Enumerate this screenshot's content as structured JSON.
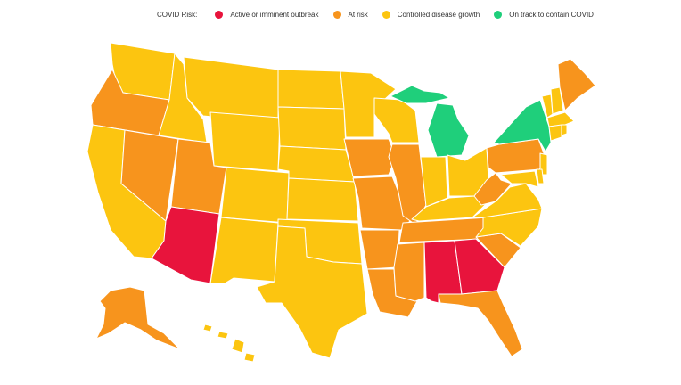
{
  "legend": {
    "title": "COVID Risk:",
    "items": [
      {
        "label": "Active or imminent outbreak",
        "color": "#e8143c"
      },
      {
        "label": "At risk",
        "color": "#f7941d"
      },
      {
        "label": "Controlled disease growth",
        "color": "#fcc510"
      },
      {
        "label": "On track to contain COVID",
        "color": "#1fcf7b"
      }
    ]
  },
  "map": {
    "risk_by_state": {
      "Active or imminent outbreak": [
        "Arizona",
        "Alabama",
        "Georgia"
      ],
      "At risk": [
        "Oregon",
        "Nevada",
        "Utah",
        "Iowa",
        "Illinois",
        "Missouri",
        "Arkansas",
        "Louisiana",
        "Mississippi",
        "Tennessee",
        "South Carolina",
        "Florida",
        "Pennsylvania",
        "West Virginia",
        "Maine",
        "Alaska"
      ],
      "Controlled disease growth": [
        "Washington",
        "Idaho",
        "Montana",
        "Wyoming",
        "California",
        "Colorado",
        "New Mexico",
        "Texas",
        "Oklahoma",
        "Kansas",
        "Nebraska",
        "South Dakota",
        "North Dakota",
        "Minnesota",
        "Wisconsin",
        "Indiana",
        "Ohio",
        "Kentucky",
        "North Carolina",
        "Virginia",
        "Maryland",
        "Delaware",
        "New Jersey",
        "Connecticut",
        "Rhode Island",
        "Massachusetts",
        "Vermont",
        "New Hampshire",
        "Hawaii"
      ],
      "On track to contain COVID": [
        "Michigan",
        "New York"
      ]
    }
  }
}
